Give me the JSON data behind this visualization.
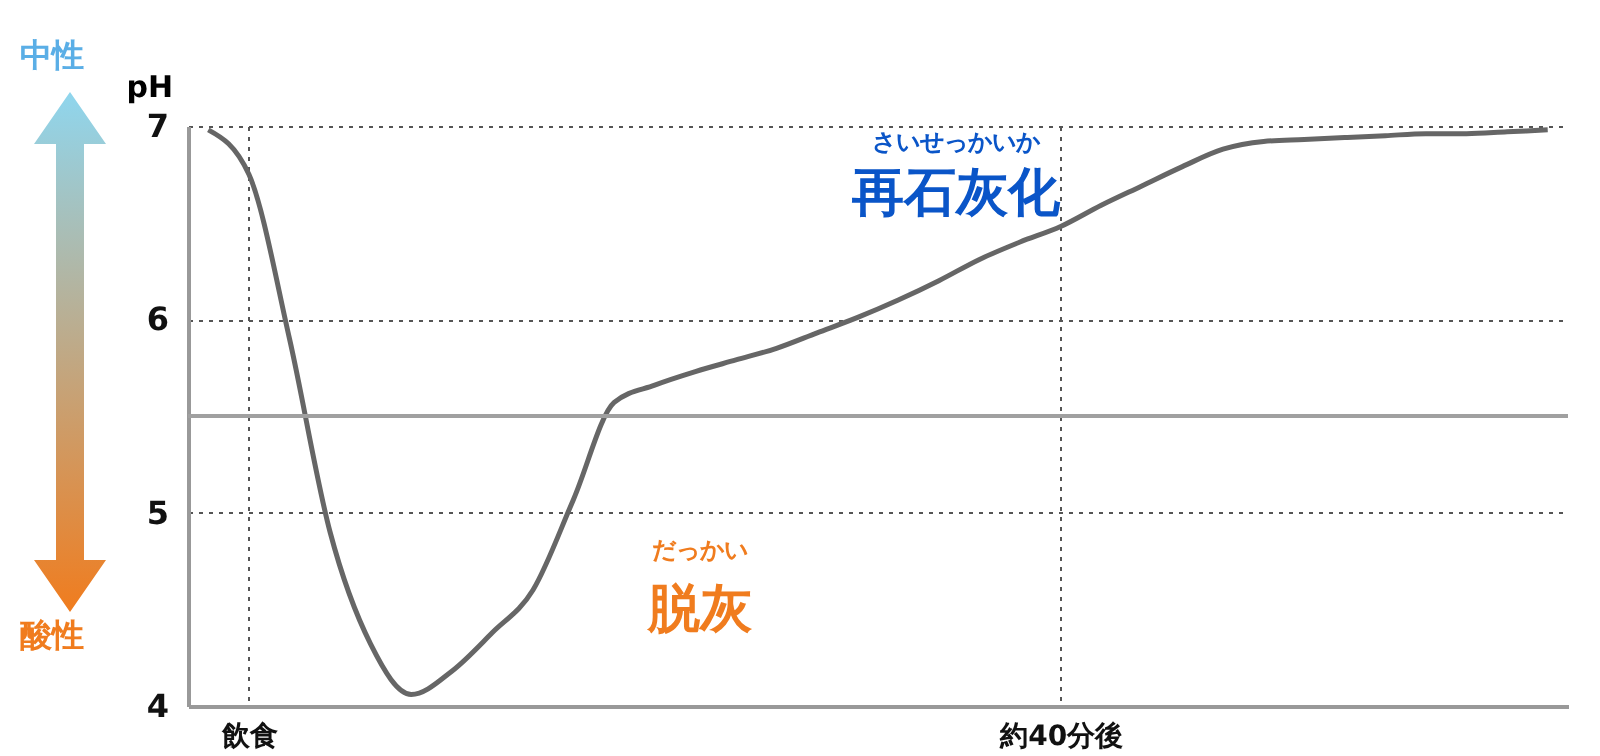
{
  "chart_data": {
    "type": "line",
    "ylabel": "pH",
    "categories": [
      null,
      "飲食",
      null,
      null,
      null,
      null,
      null,
      null,
      null,
      null,
      null,
      null,
      null,
      null,
      null,
      null,
      null,
      null,
      null,
      null,
      null,
      "約40分後",
      null,
      null,
      null,
      null,
      null,
      null,
      null,
      null,
      null,
      null,
      null,
      null
    ],
    "series": [
      {
        "color": "#666666",
        "values": [
          6.98,
          6.75,
          5.9,
          4.9,
          4.32,
          4.06,
          4.18,
          4.38,
          4.6,
          5.07,
          5.57,
          5.66,
          5.73,
          5.79,
          5.85,
          5.93,
          6.01,
          6.1,
          6.2,
          6.31,
          6.4,
          6.48,
          6.59,
          6.69,
          6.79,
          6.88,
          6.92,
          6.93,
          6.94,
          6.95,
          6.96,
          6.96,
          6.97,
          6.98
        ]
      }
    ],
    "ylim": [
      4,
      7
    ],
    "yticks": [
      4,
      5,
      6,
      7
    ],
    "grid": true,
    "ref_lines": [
      {
        "axis": "y",
        "value": 5.5,
        "color": "#a0a0a0"
      }
    ],
    "annotations": [
      "中性",
      "酸性",
      "脱灰",
      "だっかい",
      "再石灰化",
      "さいせっかいか"
    ]
  }
}
